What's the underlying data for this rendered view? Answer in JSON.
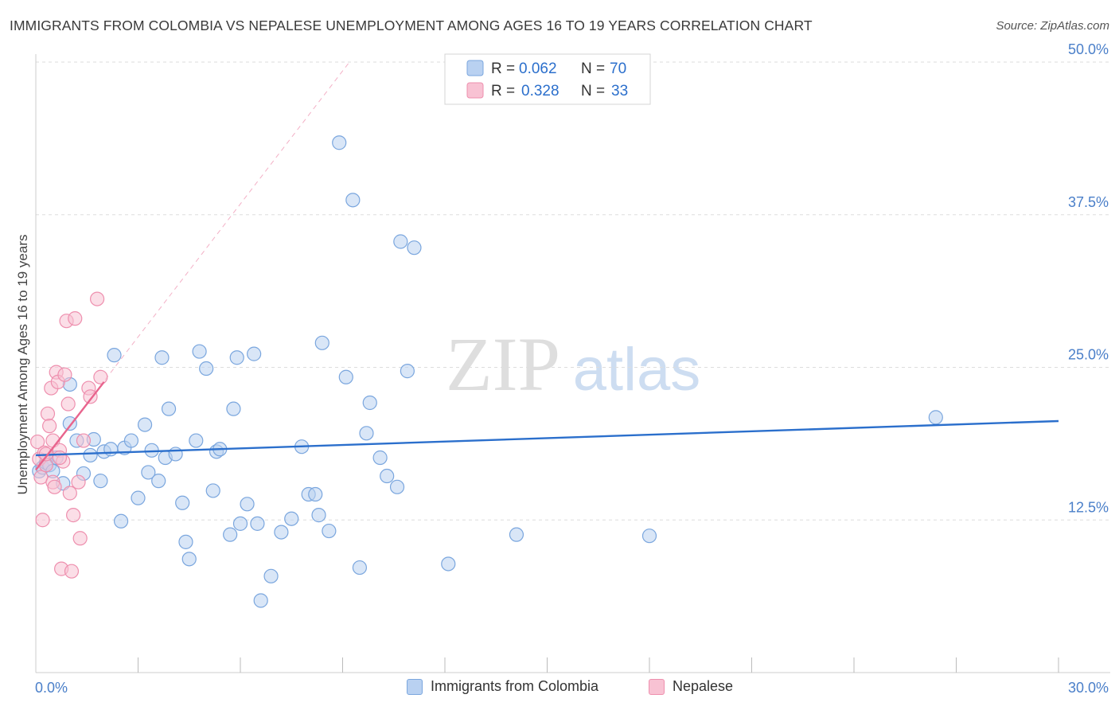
{
  "title": "IMMIGRANTS FROM COLOMBIA VS NEPALESE UNEMPLOYMENT AMONG AGES 16 TO 19 YEARS CORRELATION CHART",
  "source": "Source: ZipAtlas.com",
  "watermark": {
    "zip": "ZIP",
    "atlas": "atlas"
  },
  "colors": {
    "blue_fill": "#b9d1f1",
    "blue_stroke": "#7aa6de",
    "blue_line": "#2b6fcc",
    "pink_fill": "#f8c2d3",
    "pink_stroke": "#ee8fae",
    "pink_line": "#e8648d",
    "axis_text": "#4a7fc9",
    "grid": "#dddddd"
  },
  "legend": {
    "series1": {
      "r_label": "R =",
      "r_value": "0.062",
      "n_label": "N =",
      "n_value": "70"
    },
    "series2": {
      "r_label": "R =",
      "r_value": "0.328",
      "n_label": "N =",
      "n_value": "33"
    }
  },
  "chart_data": {
    "type": "scatter",
    "title": "IMMIGRANTS FROM COLOMBIA VS NEPALESE UNEMPLOYMENT AMONG AGES 16 TO 19 YEARS CORRELATION CHART",
    "xlabel": "",
    "ylabel": "Unemployment Among Ages 16 to 19 years",
    "xlim": [
      0,
      30
    ],
    "ylim": [
      0,
      50
    ],
    "x_tick_labels": [
      "0.0%",
      "30.0%"
    ],
    "y_ticks": [
      12.5,
      25.0,
      37.5,
      50.0
    ],
    "y_tick_labels": [
      "12.5%",
      "25.0%",
      "37.5%",
      "50.0%"
    ],
    "legend_position": "top-center",
    "series": [
      {
        "name": "Immigrants from Colombia",
        "color": "blue",
        "R": 0.062,
        "N": 70,
        "trend": {
          "x": [
            0,
            30
          ],
          "y": [
            17.8,
            20.6
          ]
        },
        "points": [
          [
            0.1,
            16.5
          ],
          [
            0.2,
            16.8
          ],
          [
            0.3,
            17.2
          ],
          [
            0.4,
            17.0
          ],
          [
            0.5,
            16.5
          ],
          [
            0.6,
            17.6
          ],
          [
            0.8,
            15.5
          ],
          [
            1.0,
            20.4
          ],
          [
            1.0,
            23.6
          ],
          [
            1.2,
            19.0
          ],
          [
            1.4,
            16.3
          ],
          [
            1.6,
            17.8
          ],
          [
            1.7,
            19.1
          ],
          [
            1.9,
            15.7
          ],
          [
            2.0,
            18.1
          ],
          [
            2.2,
            18.3
          ],
          [
            2.3,
            26.0
          ],
          [
            2.5,
            12.4
          ],
          [
            2.6,
            18.4
          ],
          [
            2.8,
            19.0
          ],
          [
            3.0,
            14.3
          ],
          [
            3.2,
            20.3
          ],
          [
            3.3,
            16.4
          ],
          [
            3.4,
            18.2
          ],
          [
            3.6,
            15.7
          ],
          [
            3.7,
            25.8
          ],
          [
            3.8,
            17.6
          ],
          [
            3.9,
            21.6
          ],
          [
            4.1,
            17.9
          ],
          [
            4.3,
            13.9
          ],
          [
            4.4,
            10.7
          ],
          [
            4.5,
            9.3
          ],
          [
            4.7,
            19.0
          ],
          [
            4.8,
            26.3
          ],
          [
            5.0,
            24.9
          ],
          [
            5.2,
            14.9
          ],
          [
            5.3,
            18.1
          ],
          [
            5.4,
            18.3
          ],
          [
            5.7,
            11.3
          ],
          [
            5.8,
            21.6
          ],
          [
            5.9,
            25.8
          ],
          [
            6.0,
            12.2
          ],
          [
            6.2,
            13.8
          ],
          [
            6.4,
            26.1
          ],
          [
            6.5,
            12.2
          ],
          [
            6.6,
            5.9
          ],
          [
            6.9,
            7.9
          ],
          [
            7.2,
            11.5
          ],
          [
            7.5,
            12.6
          ],
          [
            7.8,
            18.5
          ],
          [
            8.0,
            14.6
          ],
          [
            8.2,
            14.6
          ],
          [
            8.3,
            12.9
          ],
          [
            8.4,
            27.0
          ],
          [
            8.6,
            11.6
          ],
          [
            8.9,
            43.4
          ],
          [
            9.1,
            24.2
          ],
          [
            9.3,
            38.7
          ],
          [
            9.5,
            8.6
          ],
          [
            9.7,
            19.6
          ],
          [
            9.8,
            22.1
          ],
          [
            10.1,
            17.6
          ],
          [
            10.3,
            16.1
          ],
          [
            10.6,
            15.2
          ],
          [
            10.7,
            35.3
          ],
          [
            10.9,
            24.7
          ],
          [
            11.1,
            34.8
          ],
          [
            12.1,
            8.9
          ],
          [
            14.1,
            11.3
          ],
          [
            18.0,
            11.2
          ],
          [
            26.4,
            20.9
          ]
        ]
      },
      {
        "name": "Nepalese",
        "color": "pink",
        "R": 0.328,
        "N": 33,
        "trend": {
          "x": [
            0,
            2.0
          ],
          "y": [
            16.6,
            23.8
          ]
        },
        "points": [
          [
            0.05,
            18.9
          ],
          [
            0.1,
            17.5
          ],
          [
            0.15,
            16.0
          ],
          [
            0.2,
            12.5
          ],
          [
            0.25,
            18.0
          ],
          [
            0.3,
            17.0
          ],
          [
            0.35,
            21.2
          ],
          [
            0.4,
            20.2
          ],
          [
            0.45,
            23.3
          ],
          [
            0.5,
            19.0
          ],
          [
            0.5,
            15.6
          ],
          [
            0.55,
            15.2
          ],
          [
            0.6,
            24.6
          ],
          [
            0.65,
            23.8
          ],
          [
            0.7,
            18.2
          ],
          [
            0.75,
            8.5
          ],
          [
            0.8,
            17.3
          ],
          [
            0.85,
            24.4
          ],
          [
            0.9,
            28.8
          ],
          [
            0.95,
            22.0
          ],
          [
            1.0,
            14.7
          ],
          [
            1.05,
            8.3
          ],
          [
            1.1,
            12.9
          ],
          [
            1.15,
            29.0
          ],
          [
            1.25,
            15.6
          ],
          [
            1.3,
            11.0
          ],
          [
            1.4,
            19.0
          ],
          [
            1.55,
            23.3
          ],
          [
            1.6,
            22.6
          ],
          [
            1.8,
            30.6
          ],
          [
            1.9,
            24.2
          ],
          [
            0.3,
            17.9
          ],
          [
            0.7,
            17.6
          ]
        ]
      }
    ],
    "reference_line": {
      "style": "dashed",
      "color": "pink",
      "x": [
        0,
        9.2
      ],
      "y": [
        16.6,
        50.0
      ]
    }
  },
  "legend_bottom": [
    {
      "label": "Immigrants from Colombia",
      "color": "blue"
    },
    {
      "label": "Nepalese",
      "color": "pink"
    }
  ]
}
